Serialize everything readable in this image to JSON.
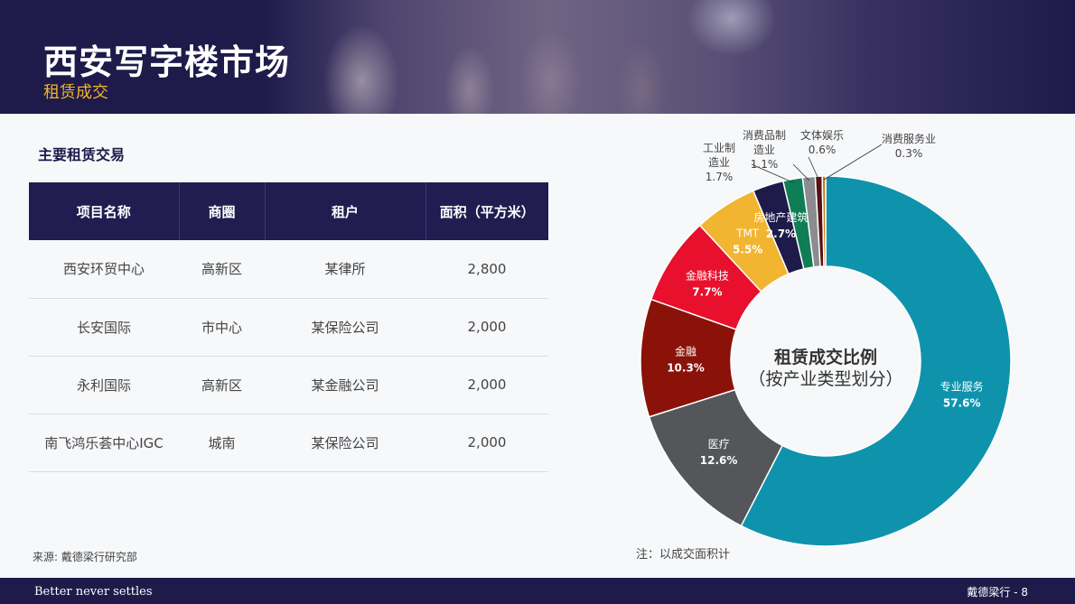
{
  "header": {
    "title": "西安写字楼市场",
    "subtitle": "租赁成交"
  },
  "table": {
    "title": "主要租赁交易",
    "columns": [
      "项目名称",
      "商圈",
      "租户",
      "面积（平方米）"
    ],
    "rows": [
      [
        "西安环贸中心",
        "高新区",
        "某律所",
        "2,800"
      ],
      [
        "长安国际",
        "市中心",
        "某保险公司",
        "2,000"
      ],
      [
        "永利国际",
        "高新区",
        "某金融公司",
        "2,000"
      ],
      [
        "南飞鸿乐荟中心IGC",
        "城南",
        "某保险公司",
        "2,000"
      ]
    ]
  },
  "chart_data": {
    "type": "pie",
    "title": "租赁成交比例",
    "subtitle": "（按产业类型划分）",
    "series": [
      {
        "name": "专业服务",
        "value": 57.6,
        "label": "57.6%",
        "color": "#0f93ad"
      },
      {
        "name": "医疗",
        "value": 12.6,
        "label": "12.6%",
        "color": "#545659"
      },
      {
        "name": "金融",
        "value": 10.3,
        "label": "10.3%",
        "color": "#8a1208"
      },
      {
        "name": "金融科技",
        "value": 7.7,
        "label": "7.7%",
        "color": "#e8102d"
      },
      {
        "name": "TMT",
        "value": 5.5,
        "label": "5.5%",
        "color": "#f2b531"
      },
      {
        "name": "房地产建筑",
        "value": 2.7,
        "label": "2.7%",
        "color": "#1e1a4a"
      },
      {
        "name": "工业制造业",
        "value": 1.7,
        "label": "1.7%",
        "color": "#0f7d55"
      },
      {
        "name": "消费品制造业",
        "value": 1.1,
        "label": "1.1%",
        "color": "#8a8c90"
      },
      {
        "name": "文体娱乐",
        "value": 0.6,
        "label": "0.6%",
        "color": "#5a1010"
      },
      {
        "name": "消费服务业",
        "value": 0.3,
        "label": "0.3%",
        "color": "#c87a1a"
      }
    ],
    "outside_labels": {
      "industrial": [
        "工业制",
        "造业",
        "1.7%"
      ],
      "consumer_goods": [
        "消费品制",
        "造业",
        "1.1%"
      ],
      "entertainment": [
        "文体娱乐",
        "0.6%"
      ],
      "consumer_services": [
        "消费服务业",
        "0.3%"
      ]
    }
  },
  "source": "来源: 戴德梁行研究部",
  "note": "注：以成交面积计",
  "footer": {
    "tagline": "Better never settles",
    "page": "戴德梁行 - 8"
  }
}
